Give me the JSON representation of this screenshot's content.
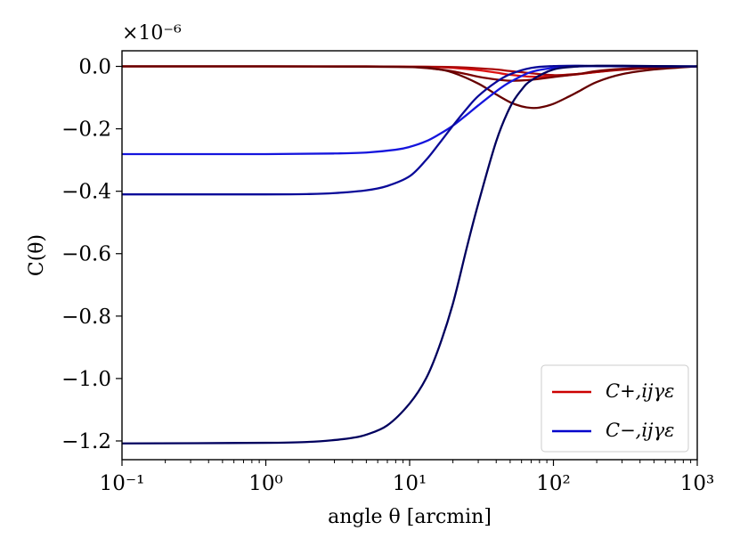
{
  "chart_data": {
    "type": "line",
    "title": "",
    "xlabel": "angle θ [arcmin]",
    "ylabel": "C(θ)",
    "xscale": "log",
    "xlim": [
      0.1,
      1000
    ],
    "ylim": [
      -1.26,
      0.05
    ],
    "y_offset_label": "×10⁻⁶",
    "x_ticks": [
      {
        "value": 0.1,
        "label": "10⁻¹"
      },
      {
        "value": 1,
        "label": "10⁰"
      },
      {
        "value": 10,
        "label": "10¹"
      },
      {
        "value": 100,
        "label": "10²"
      },
      {
        "value": 1000,
        "label": "10³"
      }
    ],
    "y_ticks": [
      {
        "value": 0.0,
        "label": "0.0"
      },
      {
        "value": -0.2,
        "label": "−0.2"
      },
      {
        "value": -0.4,
        "label": "−0.4"
      },
      {
        "value": -0.6,
        "label": "−0.6"
      },
      {
        "value": -0.8,
        "label": "−0.8"
      },
      {
        "value": -1.0,
        "label": "−1.0"
      },
      {
        "value": -1.2,
        "label": "−1.2"
      }
    ],
    "grid": false,
    "legend_position": "bottom-right",
    "legend": [
      {
        "label": "C+,ijγε",
        "color": "#cc0000"
      },
      {
        "label": "C−,ijγε",
        "color": "#0000cc"
      }
    ],
    "series": [
      {
        "legend_group": 0,
        "color": "#dd1111",
        "x": [
          0.1,
          1,
          5,
          10,
          15,
          20,
          30,
          40,
          50,
          70,
          100,
          150,
          200,
          300,
          500,
          1000
        ],
        "y": [
          0,
          0,
          0,
          -0.001,
          -0.002,
          -0.005,
          -0.012,
          -0.02,
          -0.027,
          -0.033,
          -0.032,
          -0.025,
          -0.018,
          -0.01,
          -0.004,
          0
        ]
      },
      {
        "legend_group": 0,
        "color": "#aa0a0a",
        "x": [
          0.1,
          1,
          10,
          20,
          30,
          40,
          50,
          70,
          100,
          150,
          200,
          300,
          500,
          1000
        ],
        "y": [
          0,
          0,
          -0.001,
          -0.002,
          -0.006,
          -0.01,
          -0.015,
          -0.022,
          -0.028,
          -0.024,
          -0.018,
          -0.011,
          -0.005,
          0
        ]
      },
      {
        "legend_group": 0,
        "color": "#7a0000",
        "x": [
          0.1,
          1,
          5,
          10,
          15,
          20,
          25,
          30,
          40,
          50,
          60,
          70,
          80,
          100,
          150,
          200,
          300,
          500,
          1000
        ],
        "y": [
          0,
          0,
          0,
          -0.002,
          -0.008,
          -0.016,
          -0.025,
          -0.033,
          -0.042,
          -0.046,
          -0.045,
          -0.043,
          -0.04,
          -0.034,
          -0.024,
          -0.015,
          -0.008,
          -0.003,
          0
        ]
      },
      {
        "legend_group": 0,
        "color": "#660000",
        "x": [
          0.1,
          1,
          10,
          15,
          20,
          30,
          40,
          50,
          60,
          70,
          80,
          100,
          130,
          150,
          200,
          300,
          500,
          1000
        ],
        "y": [
          0,
          0,
          -0.002,
          -0.008,
          -0.02,
          -0.055,
          -0.09,
          -0.115,
          -0.128,
          -0.133,
          -0.132,
          -0.12,
          -0.095,
          -0.08,
          -0.05,
          -0.025,
          -0.01,
          0
        ]
      },
      {
        "legend_group": 1,
        "color": "#1515dd",
        "x": [
          0.1,
          1,
          3,
          5,
          8,
          10,
          13,
          16,
          20,
          25,
          30,
          40,
          50,
          70,
          100,
          150,
          200,
          300,
          500,
          1000
        ],
        "y": [
          -0.281,
          -0.281,
          -0.279,
          -0.276,
          -0.267,
          -0.258,
          -0.24,
          -0.218,
          -0.19,
          -0.155,
          -0.125,
          -0.08,
          -0.05,
          -0.018,
          -0.005,
          0,
          0.001,
          0.001,
          0,
          0
        ]
      },
      {
        "legend_group": 1,
        "color": "#0a0a99",
        "x": [
          0.1,
          1,
          2,
          3,
          5,
          7,
          10,
          13,
          16,
          20,
          25,
          30,
          40,
          50,
          70,
          100,
          150,
          200,
          300,
          500,
          1000
        ],
        "y": [
          -0.41,
          -0.41,
          -0.409,
          -0.406,
          -0.397,
          -0.383,
          -0.352,
          -0.3,
          -0.248,
          -0.19,
          -0.135,
          -0.095,
          -0.05,
          -0.025,
          -0.005,
          0.001,
          0.002,
          0.001,
          0,
          0,
          0
        ]
      },
      {
        "legend_group": 1,
        "color": "#00005e",
        "x": [
          0.1,
          1,
          2,
          3,
          4,
          5,
          7,
          10,
          13,
          16,
          20,
          25,
          30,
          40,
          50,
          60,
          70,
          100,
          150,
          200,
          300,
          500,
          1000
        ],
        "y": [
          -1.208,
          -1.206,
          -1.203,
          -1.197,
          -1.19,
          -1.18,
          -1.15,
          -1.08,
          -1.0,
          -0.9,
          -0.76,
          -0.58,
          -0.44,
          -0.24,
          -0.13,
          -0.075,
          -0.045,
          -0.01,
          0,
          0.002,
          0.002,
          0.001,
          0
        ]
      }
    ]
  }
}
